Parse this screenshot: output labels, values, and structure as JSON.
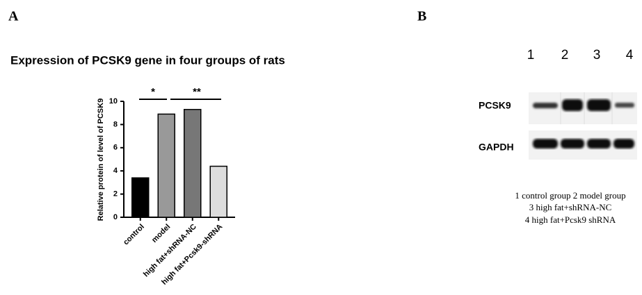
{
  "panel_a": {
    "label": "A"
  },
  "chart_data": {
    "type": "bar",
    "title": "Expression of PCSK9 gene in four groups of rats",
    "y_label": "Relative protein of level of PCSK9",
    "categories": [
      "control",
      "model",
      "high fat+shRNA-NC",
      "high fat+Pcsk9-shRNA"
    ],
    "values": [
      3.4,
      8.9,
      9.3,
      4.4
    ],
    "colors": [
      "#000000",
      "#999999",
      "#777777",
      "#dddddd"
    ],
    "ylim": [
      0,
      10
    ],
    "yticks": [
      0,
      2,
      4,
      6,
      8,
      10
    ],
    "grid": false,
    "annotations": [
      "*",
      "**"
    ]
  },
  "panel_b": {
    "label": "B",
    "lanes": [
      "1",
      "2",
      "3",
      "4"
    ],
    "rows": [
      "PCSK9",
      "GAPDH"
    ],
    "caption": [
      "1 control group 2 model group",
      "3 high fat+shRNA-NC",
      "4 high fat+Pcsk9 shRNA"
    ]
  }
}
